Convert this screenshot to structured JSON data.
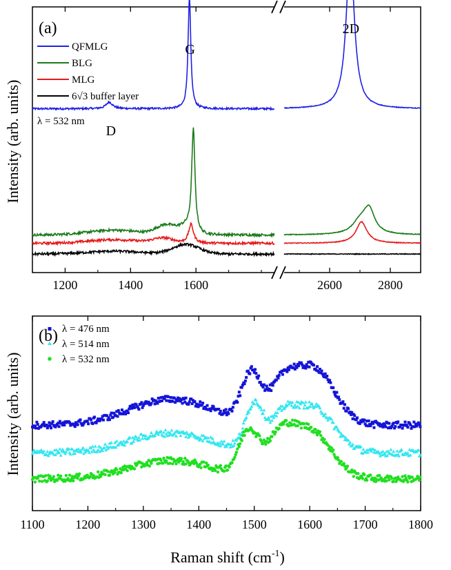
{
  "figure": {
    "xlabel": "Raman shift (cm",
    "xlabel_sup": "-1",
    "xlabel_close": ")"
  },
  "chart_data": [
    {
      "panel_label": "(a)",
      "type": "line",
      "ylabel": "Intensity (arb. units)",
      "xlim_left": [
        1100,
        1840
      ],
      "xlim_right": [
        2450,
        2900
      ],
      "xticks": [
        1200,
        1400,
        1600,
        2600,
        2800
      ],
      "axis_break": true,
      "legend_position": "top-left",
      "annotation": "λ = 532 nm",
      "peak_labels": [
        {
          "text": "D",
          "x": 1340
        },
        {
          "text": "G",
          "x": 1582
        },
        {
          "text": "2D",
          "x": 2670
        }
      ],
      "series": [
        {
          "name": "QFMLG",
          "color": "#1f1fe6",
          "baseline": 0.63,
          "peaks": [
            {
              "x": 1335,
              "amp": 0.028,
              "width": 12
            },
            {
              "x": 1580,
              "amp": 0.47,
              "width": 5
            },
            {
              "x": 2668,
              "amp": 0.66,
              "width": 16
            }
          ],
          "bumps": []
        },
        {
          "name": "BLG",
          "color": "#1a7a1a",
          "baseline": 0.1,
          "peaks": [
            {
              "x": 1592,
              "amp": 0.43,
              "width": 6
            },
            {
              "x": 2700,
              "amp": 0.05,
              "width": 30
            },
            {
              "x": 2730,
              "amp": 0.1,
              "width": 22
            }
          ],
          "bumps": [
            {
              "x": 1350,
              "amp": 0.02,
              "width": 80
            },
            {
              "x": 1510,
              "amp": 0.04,
              "width": 30
            },
            {
              "x": 1570,
              "amp": 0.03,
              "width": 20
            }
          ]
        },
        {
          "name": "MLG",
          "color": "#e61a1a",
          "baseline": 0.065,
          "peaks": [
            {
              "x": 1585,
              "amp": 0.08,
              "width": 9
            },
            {
              "x": 2705,
              "amp": 0.09,
              "width": 22
            }
          ],
          "bumps": [
            {
              "x": 1350,
              "amp": 0.015,
              "width": 80
            },
            {
              "x": 1500,
              "amp": 0.02,
              "width": 30
            }
          ]
        },
        {
          "name": "6√3 buffer layer",
          "color": "#000000",
          "baseline": 0.02,
          "peaks": [],
          "bumps": [
            {
              "x": 1350,
              "amp": 0.012,
              "width": 80
            },
            {
              "x": 1570,
              "amp": 0.04,
              "width": 40
            }
          ]
        }
      ]
    },
    {
      "panel_label": "(b)",
      "type": "scatter",
      "ylabel": "Intensity (arb. units)",
      "xlim": [
        1100,
        1800
      ],
      "xticks": [
        1100,
        1200,
        1300,
        1400,
        1500,
        1600,
        1700,
        1800
      ],
      "legend_position": "top-left",
      "series": [
        {
          "name": "λ = 476 nm",
          "color": "#1414d8",
          "marker": "square",
          "baseline": 0.4,
          "bumps": [
            {
              "x": 1350,
              "amp": 0.17,
              "width": 75
            },
            {
              "x": 1495,
              "amp": 0.32,
              "width": 18
            },
            {
              "x": 1550,
              "amp": 0.2,
              "width": 22
            },
            {
              "x": 1605,
              "amp": 0.38,
              "width": 38
            }
          ]
        },
        {
          "name": "λ = 514 nm",
          "color": "#33e6f0",
          "marker": "triangle",
          "baseline": 0.22,
          "bumps": [
            {
              "x": 1350,
              "amp": 0.13,
              "width": 75
            },
            {
              "x": 1500,
              "amp": 0.3,
              "width": 16
            },
            {
              "x": 1550,
              "amp": 0.18,
              "width": 22
            },
            {
              "x": 1605,
              "amp": 0.3,
              "width": 38
            }
          ]
        },
        {
          "name": "λ = 532 nm",
          "color": "#1fe01f",
          "marker": "circle",
          "baseline": 0.05,
          "bumps": [
            {
              "x": 1350,
              "amp": 0.12,
              "width": 75
            },
            {
              "x": 1490,
              "amp": 0.29,
              "width": 18
            },
            {
              "x": 1545,
              "amp": 0.22,
              "width": 24
            },
            {
              "x": 1600,
              "amp": 0.32,
              "width": 38
            }
          ]
        }
      ]
    }
  ]
}
